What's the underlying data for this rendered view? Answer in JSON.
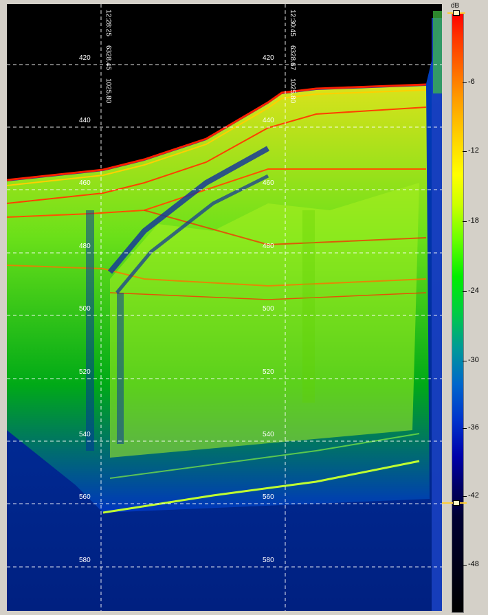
{
  "echogram": {
    "depth_ticks": [
      "420",
      "440",
      "460",
      "480",
      "500",
      "520",
      "540",
      "560",
      "580"
    ],
    "ping_markers": [
      {
        "time": "12:28:25",
        "ping": "6328.45",
        "distance": "1025.80"
      },
      {
        "time": "12:30:45",
        "ping": "6328.67",
        "distance": "1025.80"
      }
    ]
  },
  "colorbar": {
    "unit": "dB",
    "ticks": [
      "-6",
      "-12",
      "-18",
      "-24",
      "-30",
      "-36",
      "-42",
      "-48"
    ],
    "upper_handle": "0",
    "lower_handle": "-42",
    "colors": {
      "strong": "#ff0000",
      "mid": "#ffff00",
      "weak": "#00cc00",
      "low": "#0033cc",
      "min": "#000000"
    }
  }
}
